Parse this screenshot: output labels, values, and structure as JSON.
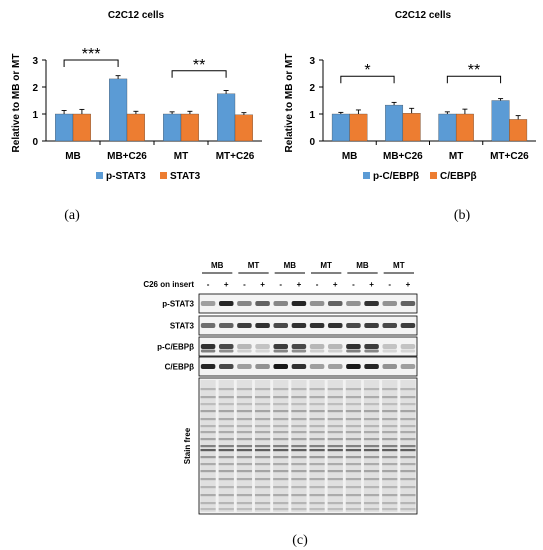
{
  "chart_data": [
    {
      "type": "bar",
      "title": "C2C12 cells",
      "ylabel": "Relative to MB or MT",
      "xlabel": "",
      "ylim": [
        0,
        3
      ],
      "yticks": [
        "0",
        "1",
        "2",
        "3"
      ],
      "categories": [
        "MB",
        "MB+C26",
        "MT",
        "MT+C26"
      ],
      "series": [
        {
          "name": "p-STAT3",
          "color": "#5b9bd5",
          "values": [
            1.0,
            2.3,
            1.0,
            1.75
          ],
          "errors": [
            0.13,
            0.12,
            0.08,
            0.12
          ]
        },
        {
          "name": "STAT3",
          "color": "#ed7d31",
          "values": [
            1.0,
            1.0,
            1.0,
            0.97
          ],
          "errors": [
            0.17,
            0.1,
            0.1,
            0.08
          ]
        }
      ],
      "significance": [
        {
          "label": "***",
          "from": 0,
          "to": 1,
          "y": 3.0
        },
        {
          "label": "**",
          "from": 2,
          "to": 3,
          "y": 2.6
        }
      ],
      "legend": "bottom",
      "panel_label": "(a)"
    },
    {
      "type": "bar",
      "title": "C2C12 cells",
      "ylabel": "Relative to MB or MT",
      "xlabel": "",
      "ylim": [
        0,
        3
      ],
      "yticks": [
        "0",
        "1",
        "2",
        "3"
      ],
      "categories": [
        "MB",
        "MB+C26",
        "MT",
        "MT+C26"
      ],
      "series": [
        {
          "name": "p-C/EBPβ",
          "color": "#5b9bd5",
          "values": [
            1.0,
            1.33,
            1.0,
            1.5
          ],
          "errors": [
            0.06,
            0.1,
            0.08,
            0.07
          ]
        },
        {
          "name": "C/EBPβ",
          "color": "#ed7d31",
          "values": [
            1.0,
            1.03,
            1.0,
            0.8
          ],
          "errors": [
            0.15,
            0.18,
            0.18,
            0.14
          ]
        }
      ],
      "significance": [
        {
          "label": "*",
          "from": 0,
          "to": 1,
          "y": 2.4
        },
        {
          "label": "**",
          "from": 2,
          "to": 3,
          "y": 2.4
        }
      ],
      "legend": "bottom",
      "panel_label": "(b)"
    }
  ],
  "blot": {
    "header_groups": [
      "MB",
      "MT",
      "MB",
      "MT",
      "MB",
      "MT"
    ],
    "treatment_label": "C26 on insert",
    "treatment_marks": [
      "-",
      "+",
      "-",
      "+",
      "-",
      "+",
      "-",
      "+",
      "-",
      "+",
      "-",
      "+"
    ],
    "rows": [
      "p-STAT3",
      "STAT3",
      "p-C/EBPβ",
      "C/EBPβ"
    ],
    "stain_label": "Stain free",
    "panel_label": "(c)"
  }
}
